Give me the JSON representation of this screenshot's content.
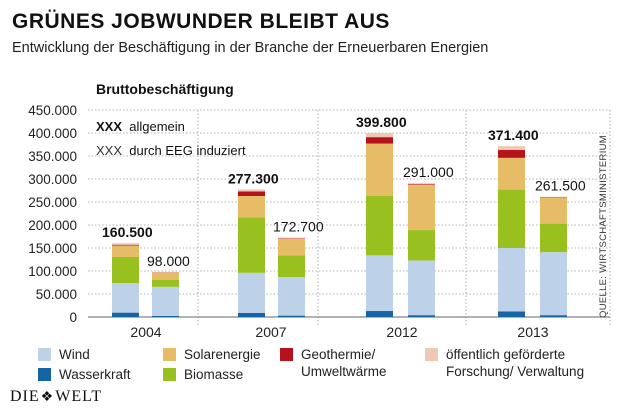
{
  "title": "GRÜNES JOBWUNDER BLEIBT AUS",
  "subtitle": "Entwicklung der Beschäftigung in der Branche der Erneuerbaren Energien",
  "source": "QUELLE: WIRTSCHAFTSMINISTERIUM",
  "brand": {
    "left": "DIE",
    "right": "WELT",
    "emblem_icon": "eagle-icon"
  },
  "key": {
    "sample": "XXX",
    "allgemein": "allgemein",
    "eeg": "durch EEG induziert"
  },
  "colors": {
    "Wind": "#bdd2e9",
    "Wasserkraft": "#1565a6",
    "Solarenergie": "#e6bc66",
    "Biomasse": "#98c11f",
    "Geothermie": "#b5121b",
    "Forschung": "#f1c6b4",
    "grid": "#9a9a9a"
  },
  "legend": [
    {
      "name": "Wind",
      "label": "Wind"
    },
    {
      "name": "Wasserkraft",
      "label": "Wasserkraft"
    },
    {
      "name": "Solarenergie",
      "label": "Solarenergie"
    },
    {
      "name": "Biomasse",
      "label": "Biomasse"
    },
    {
      "name": "Geothermie",
      "label": "Geothermie/",
      "label2": "Umweltwärme"
    },
    {
      "name": "Forschung",
      "label": "öffentlich geförderte",
      "label2": "Forschung/ Verwaltung"
    }
  ],
  "chart_data": {
    "type": "bar",
    "stacked": true,
    "title": "GRÜNES JOBWUNDER BLEIBT AUS",
    "subtitle": "Entwicklung der Beschäftigung in der Branche der Erneuerbaren Energien",
    "ylabel": "Bruttobeschäftigung",
    "ylim": [
      0,
      450000
    ],
    "yticks": [
      0,
      50000,
      100000,
      150000,
      200000,
      250000,
      300000,
      350000,
      400000,
      450000
    ],
    "ytick_labels": [
      "0",
      "50.000",
      "100.000",
      "150.000",
      "200.000",
      "250.000",
      "300.000",
      "350.000",
      "400.000",
      "450.000"
    ],
    "grid": true,
    "categories": [
      "2004",
      "2007",
      "2012",
      "2013"
    ],
    "bars": [
      {
        "year": "2004",
        "kind": "allgemein",
        "total": 160500,
        "label": "160.500",
        "segments": {
          "Wasserkraft": 9500,
          "Wind": 64000,
          "Biomasse": 57000,
          "Solarenergie": 25000,
          "Geothermie": 1500,
          "Forschung": 3500
        }
      },
      {
        "year": "2004",
        "kind": "EEG",
        "total": 98000,
        "label": "98.000",
        "segments": {
          "Wasserkraft": 2500,
          "Wind": 63000,
          "Biomasse": 15000,
          "Solarenergie": 16000,
          "Geothermie": 500,
          "Forschung": 1000
        }
      },
      {
        "year": "2007",
        "kind": "allgemein",
        "total": 277300,
        "label": "277.300",
        "segments": {
          "Wasserkraft": 9000,
          "Wind": 87000,
          "Biomasse": 121000,
          "Solarenergie": 46000,
          "Geothermie": 10000,
          "Forschung": 4300
        }
      },
      {
        "year": "2007",
        "kind": "EEG",
        "total": 172700,
        "label": "172.700",
        "segments": {
          "Wasserkraft": 3000,
          "Wind": 84000,
          "Biomasse": 47000,
          "Solarenergie": 36000,
          "Geothermie": 1000,
          "Forschung": 1700
        }
      },
      {
        "year": "2012",
        "kind": "allgemein",
        "total": 399800,
        "label": "399.800",
        "segments": {
          "Wasserkraft": 13000,
          "Wind": 121000,
          "Biomasse": 129000,
          "Solarenergie": 114000,
          "Geothermie": 14000,
          "Forschung": 8800
        }
      },
      {
        "year": "2012",
        "kind": "EEG",
        "total": 291000,
        "label": "291.000",
        "segments": {
          "Wasserkraft": 4000,
          "Wind": 119000,
          "Biomasse": 66000,
          "Solarenergie": 98000,
          "Geothermie": 1500,
          "Forschung": 2500
        }
      },
      {
        "year": "2013",
        "kind": "allgemein",
        "total": 371400,
        "label": "371.400",
        "segments": {
          "Wasserkraft": 12000,
          "Wind": 138000,
          "Biomasse": 127000,
          "Solarenergie": 69000,
          "Geothermie": 17000,
          "Forschung": 8400
        }
      },
      {
        "year": "2013",
        "kind": "EEG",
        "total": 261500,
        "label": "261.500",
        "segments": {
          "Wasserkraft": 4000,
          "Wind": 137000,
          "Biomasse": 62000,
          "Solarenergie": 56000,
          "Geothermie": 1000,
          "Forschung": 1500
        }
      }
    ]
  }
}
